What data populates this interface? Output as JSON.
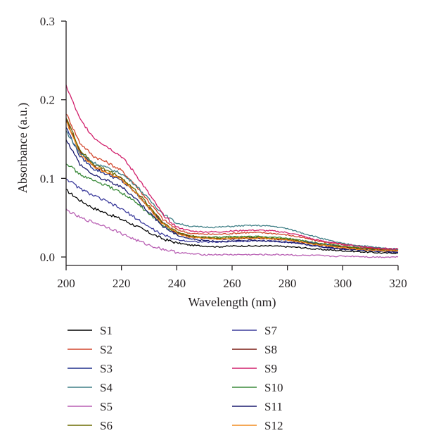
{
  "chart_data": {
    "type": "line",
    "title": "",
    "xlabel": "Wavelength (nm)",
    "ylabel": "Absorbance (a.u.)",
    "xlim": [
      200,
      320
    ],
    "ylim": [
      0.0,
      0.3
    ],
    "xticks": [
      200,
      220,
      240,
      260,
      280,
      300,
      320
    ],
    "xtick_labels": [
      "200",
      "220",
      "240",
      "260",
      "280",
      "300",
      "320"
    ],
    "yticks": [
      0.0,
      0.1,
      0.2,
      0.3
    ],
    "ytick_labels": [
      "0.0",
      "0.1",
      "0.2",
      "0.3"
    ],
    "grid": false,
    "legend_position": "bottom, two columns",
    "x": [
      200,
      205,
      210,
      215,
      220,
      225,
      230,
      235,
      240,
      245,
      250,
      255,
      260,
      265,
      270,
      275,
      280,
      285,
      290,
      295,
      300,
      305,
      310,
      315,
      320
    ],
    "series": [
      {
        "name": "S1",
        "color": "#000000",
        "values": [
          0.085,
          0.072,
          0.062,
          0.055,
          0.048,
          0.04,
          0.031,
          0.023,
          0.018,
          0.015,
          0.014,
          0.013,
          0.014,
          0.014,
          0.014,
          0.014,
          0.013,
          0.012,
          0.01,
          0.009,
          0.008,
          0.007,
          0.006,
          0.005,
          0.005
        ]
      },
      {
        "name": "S2",
        "color": "#d2452b",
        "values": [
          0.183,
          0.145,
          0.128,
          0.12,
          0.11,
          0.092,
          0.07,
          0.048,
          0.035,
          0.03,
          0.029,
          0.029,
          0.03,
          0.031,
          0.031,
          0.03,
          0.028,
          0.025,
          0.021,
          0.018,
          0.016,
          0.014,
          0.012,
          0.01,
          0.009
        ]
      },
      {
        "name": "S3",
        "color": "#1f2f8c",
        "values": [
          0.165,
          0.128,
          0.112,
          0.105,
          0.097,
          0.082,
          0.063,
          0.043,
          0.031,
          0.026,
          0.024,
          0.023,
          0.023,
          0.024,
          0.024,
          0.023,
          0.022,
          0.02,
          0.017,
          0.015,
          0.013,
          0.011,
          0.01,
          0.009,
          0.008
        ]
      },
      {
        "name": "S4",
        "color": "#3f7f86",
        "values": [
          0.16,
          0.132,
          0.12,
          0.113,
          0.106,
          0.092,
          0.073,
          0.055,
          0.043,
          0.039,
          0.038,
          0.038,
          0.039,
          0.04,
          0.04,
          0.039,
          0.036,
          0.031,
          0.026,
          0.021,
          0.017,
          0.015,
          0.013,
          0.011,
          0.01
        ]
      },
      {
        "name": "S5",
        "color": "#b85fb3",
        "values": [
          0.06,
          0.05,
          0.044,
          0.038,
          0.03,
          0.022,
          0.015,
          0.01,
          0.006,
          0.004,
          0.003,
          0.003,
          0.003,
          0.003,
          0.003,
          0.003,
          0.003,
          0.002,
          0.002,
          0.001,
          0.001,
          0.001,
          0.0,
          0.0,
          0.0
        ]
      },
      {
        "name": "S6",
        "color": "#6b6b00",
        "values": [
          0.178,
          0.136,
          0.118,
          0.11,
          0.101,
          0.085,
          0.065,
          0.044,
          0.032,
          0.027,
          0.025,
          0.024,
          0.025,
          0.025,
          0.025,
          0.024,
          0.023,
          0.02,
          0.017,
          0.015,
          0.013,
          0.011,
          0.01,
          0.009,
          0.008
        ]
      },
      {
        "name": "S7",
        "color": "#3b3b9c",
        "values": [
          0.1,
          0.087,
          0.078,
          0.07,
          0.061,
          0.05,
          0.038,
          0.028,
          0.022,
          0.02,
          0.019,
          0.019,
          0.02,
          0.02,
          0.021,
          0.02,
          0.019,
          0.017,
          0.014,
          0.012,
          0.01,
          0.009,
          0.008,
          0.007,
          0.006
        ]
      },
      {
        "name": "S8",
        "color": "#7a1a12",
        "values": [
          0.175,
          0.134,
          0.116,
          0.108,
          0.099,
          0.083,
          0.063,
          0.043,
          0.031,
          0.026,
          0.024,
          0.023,
          0.023,
          0.024,
          0.024,
          0.023,
          0.022,
          0.019,
          0.016,
          0.014,
          0.012,
          0.011,
          0.01,
          0.009,
          0.008
        ]
      },
      {
        "name": "S9",
        "color": "#d11f6b",
        "values": [
          0.218,
          0.175,
          0.152,
          0.14,
          0.128,
          0.106,
          0.08,
          0.054,
          0.038,
          0.033,
          0.032,
          0.032,
          0.033,
          0.034,
          0.034,
          0.033,
          0.031,
          0.027,
          0.022,
          0.019,
          0.016,
          0.014,
          0.012,
          0.011,
          0.01
        ]
      },
      {
        "name": "S10",
        "color": "#3a8a3a",
        "values": [
          0.12,
          0.105,
          0.097,
          0.09,
          0.082,
          0.07,
          0.055,
          0.04,
          0.03,
          0.026,
          0.025,
          0.025,
          0.026,
          0.026,
          0.026,
          0.025,
          0.024,
          0.021,
          0.018,
          0.016,
          0.014,
          0.012,
          0.011,
          0.01,
          0.009
        ]
      },
      {
        "name": "S11",
        "color": "#1a1a6e",
        "values": [
          0.15,
          0.118,
          0.104,
          0.097,
          0.089,
          0.075,
          0.057,
          0.039,
          0.028,
          0.023,
          0.021,
          0.02,
          0.02,
          0.021,
          0.021,
          0.02,
          0.019,
          0.017,
          0.014,
          0.012,
          0.01,
          0.009,
          0.008,
          0.007,
          0.006
        ]
      },
      {
        "name": "S12",
        "color": "#f28c1e",
        "values": [
          0.172,
          0.132,
          0.115,
          0.107,
          0.098,
          0.082,
          0.062,
          0.042,
          0.03,
          0.025,
          0.024,
          0.023,
          0.024,
          0.024,
          0.024,
          0.023,
          0.022,
          0.019,
          0.016,
          0.014,
          0.012,
          0.01,
          0.009,
          0.008,
          0.008
        ]
      }
    ]
  }
}
